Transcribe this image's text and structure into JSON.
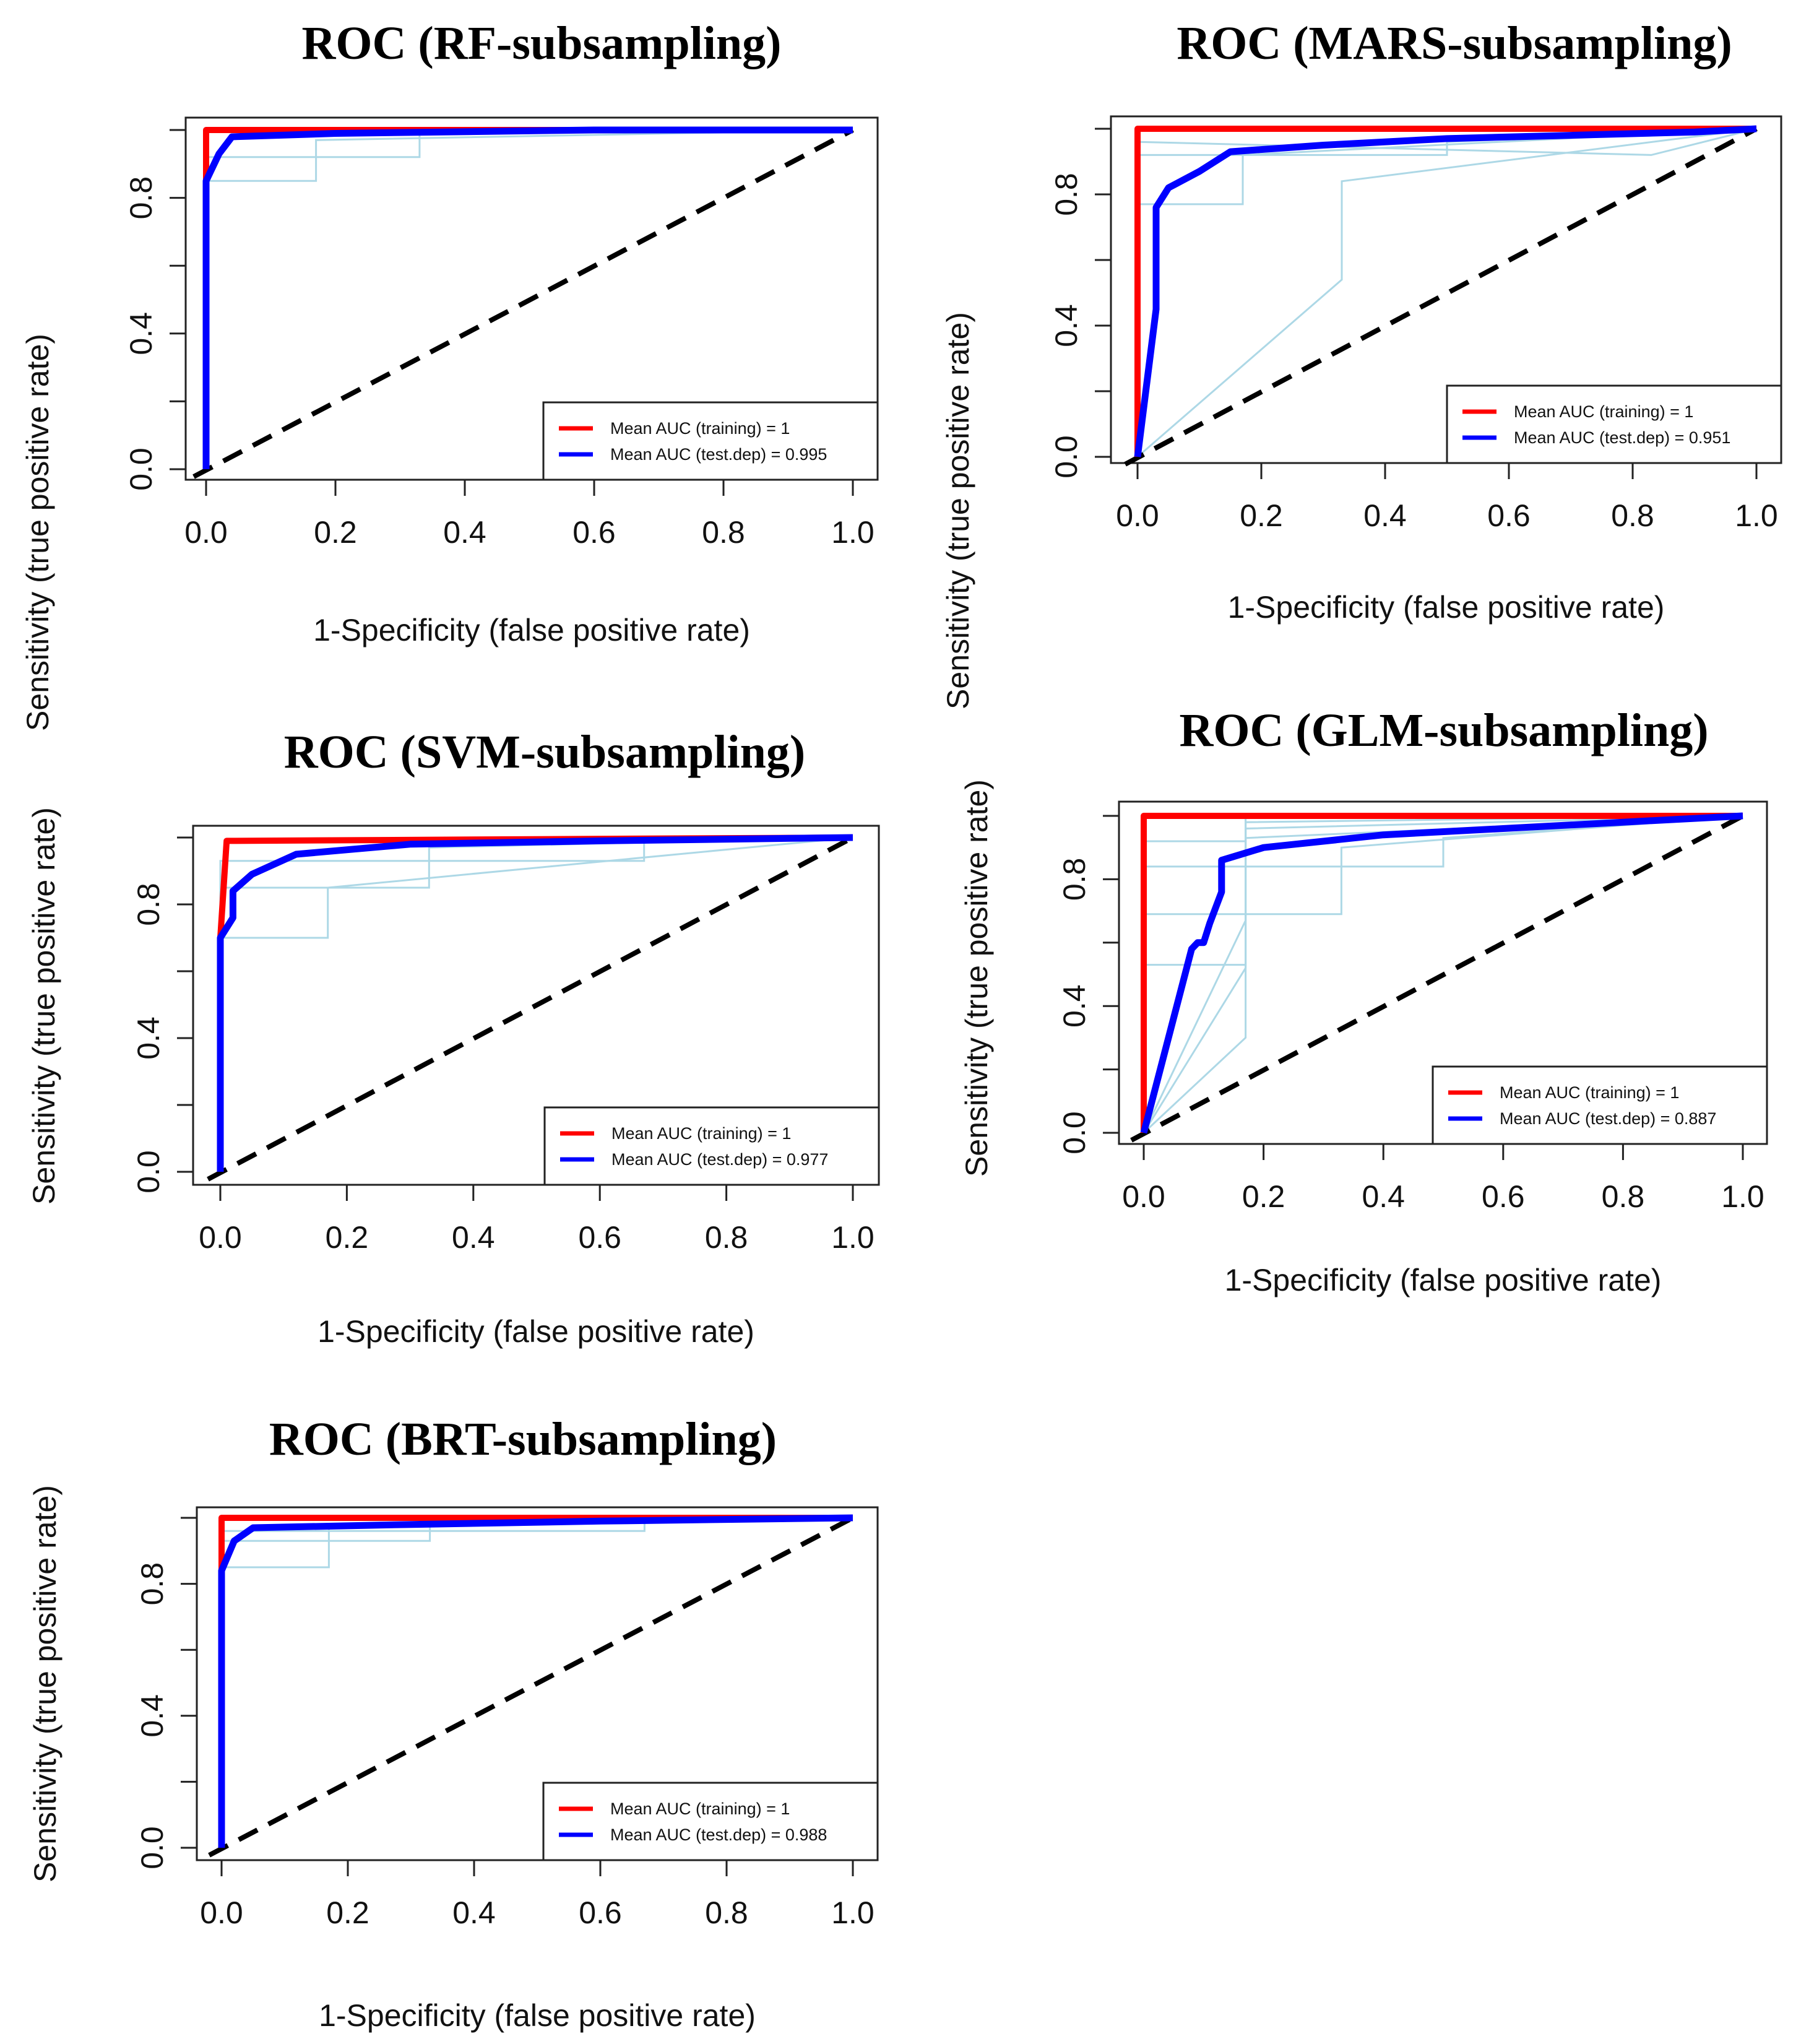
{
  "colors": {
    "training": "#ff0000",
    "test": "#0000ff",
    "reference": "#000000",
    "resample": "#add8e6",
    "frame": "#222222"
  },
  "chart_data": [
    {
      "type": "line",
      "title": "ROC (RF-subsampling)",
      "xlabel": "1-Specificity (false positive rate)",
      "ylabel": "Sensitivity (true positive rate)",
      "xlim": [
        0,
        1
      ],
      "ylim": [
        0,
        1
      ],
      "x_ticks": [
        "0.0",
        "0.2",
        "0.4",
        "0.6",
        "0.8",
        "1.0"
      ],
      "y_ticks": [
        "0.0",
        "0.4",
        "0.8"
      ],
      "legend_position": "bottom-right",
      "legend": [
        "Mean AUC (training) = 1",
        "Mean AUC (test.dep) = 0.995"
      ],
      "series": [
        {
          "name": "training",
          "x": [
            0,
            0,
            0,
            1
          ],
          "y": [
            0,
            0.85,
            1,
            1
          ]
        },
        {
          "name": "test",
          "x": [
            0,
            0,
            0.02,
            0.04,
            0.2,
            0.6,
            1
          ],
          "y": [
            0,
            0.85,
            0.93,
            0.98,
            0.99,
            1,
            1
          ]
        }
      ],
      "resamples": [
        {
          "x": [
            0,
            0,
            0.17,
            0.17,
            1
          ],
          "y": [
            0,
            0.85,
            0.85,
            0.97,
            1
          ]
        },
        {
          "x": [
            0,
            0,
            0.33,
            0.33,
            1
          ],
          "y": [
            0,
            0.92,
            0.92,
            1,
            1
          ]
        }
      ]
    },
    {
      "type": "line",
      "title": "ROC (MARS-subsampling)",
      "xlabel": "1-Specificity (false positive rate)",
      "ylabel": "Sensitivity (true positive rate)",
      "xlim": [
        0,
        1
      ],
      "ylim": [
        0,
        1
      ],
      "x_ticks": [
        "0.0",
        "0.2",
        "0.4",
        "0.6",
        "0.8",
        "1.0"
      ],
      "y_ticks": [
        "0.0",
        "0.4",
        "0.8"
      ],
      "legend_position": "bottom-right",
      "legend": [
        "Mean AUC (training) = 1",
        "Mean AUC (test.dep) = 0.951"
      ],
      "series": [
        {
          "name": "training",
          "x": [
            0,
            0,
            1
          ],
          "y": [
            0,
            1,
            1
          ]
        },
        {
          "name": "test",
          "x": [
            0,
            0.03,
            0.03,
            0.05,
            0.1,
            0.15,
            0.3,
            0.5,
            0.7,
            0.9,
            1
          ],
          "y": [
            0,
            0.45,
            0.76,
            0.82,
            0.87,
            0.93,
            0.95,
            0.97,
            0.98,
            0.99,
            1
          ]
        }
      ],
      "resamples": [
        {
          "x": [
            0,
            0.33,
            0.33,
            1
          ],
          "y": [
            0,
            0.54,
            0.84,
            1
          ]
        },
        {
          "x": [
            0,
            0,
            0.17,
            0.17,
            1
          ],
          "y": [
            0,
            0.77,
            0.77,
            0.92,
            1
          ]
        },
        {
          "x": [
            0,
            0,
            0.5,
            0.5,
            1
          ],
          "y": [
            0,
            0.92,
            0.92,
            0.96,
            1
          ]
        },
        {
          "x": [
            0,
            0,
            0.83,
            1
          ],
          "y": [
            0,
            0.96,
            0.92,
            1
          ]
        }
      ]
    },
    {
      "type": "line",
      "title": "ROC (SVM-subsampling)",
      "xlabel": "1-Specificity (false positive rate)",
      "ylabel": "Sensitivity (true positive rate)",
      "xlim": [
        0,
        1
      ],
      "ylim": [
        0,
        1
      ],
      "x_ticks": [
        "0.0",
        "0.2",
        "0.4",
        "0.6",
        "0.8",
        "1.0"
      ],
      "y_ticks": [
        "0.0",
        "0.4",
        "0.8"
      ],
      "legend_position": "bottom-right",
      "legend": [
        "Mean AUC (training) = 1",
        "Mean AUC (test.dep) = 0.977"
      ],
      "series": [
        {
          "name": "training",
          "x": [
            0,
            0,
            0.01,
            1
          ],
          "y": [
            0,
            0.7,
            0.99,
            1
          ]
        },
        {
          "name": "test",
          "x": [
            0,
            0,
            0.02,
            0.02,
            0.05,
            0.12,
            0.3,
            0.6,
            1
          ],
          "y": [
            0,
            0.7,
            0.76,
            0.84,
            0.89,
            0.95,
            0.98,
            0.99,
            1
          ]
        }
      ],
      "resamples": [
        {
          "x": [
            0,
            0,
            0.17,
            0.17,
            1
          ],
          "y": [
            0,
            0.7,
            0.7,
            0.85,
            1
          ]
        },
        {
          "x": [
            0,
            0,
            0.33,
            0.33,
            1
          ],
          "y": [
            0,
            0.85,
            0.85,
            0.97,
            1
          ]
        },
        {
          "x": [
            0,
            0,
            0.67,
            0.67,
            1
          ],
          "y": [
            0,
            0.93,
            0.93,
            1,
            1
          ]
        }
      ]
    },
    {
      "type": "line",
      "title": "ROC (GLM-subsampling)",
      "xlabel": "1-Specificity (false positive rate)",
      "ylabel": "Sensitivity (true positive rate)",
      "xlim": [
        0,
        1
      ],
      "ylim": [
        0,
        1
      ],
      "x_ticks": [
        "0.0",
        "0.2",
        "0.4",
        "0.6",
        "0.8",
        "1.0"
      ],
      "y_ticks": [
        "0.0",
        "0.4",
        "0.8"
      ],
      "legend_position": "bottom-right",
      "legend": [
        "Mean AUC (training) = 1",
        "Mean AUC (test.dep) = 0.887"
      ],
      "series": [
        {
          "name": "training",
          "x": [
            0,
            0,
            1
          ],
          "y": [
            0,
            1,
            1
          ]
        },
        {
          "name": "test",
          "x": [
            0,
            0.08,
            0.09,
            0.1,
            0.11,
            0.13,
            0.13,
            0.2,
            0.4,
            0.6,
            0.8,
            1
          ],
          "y": [
            0,
            0.58,
            0.6,
            0.6,
            0.66,
            0.76,
            0.86,
            0.9,
            0.94,
            0.96,
            0.98,
            1
          ]
        }
      ],
      "resamples": [
        {
          "x": [
            0,
            0.17,
            0.17,
            1
          ],
          "y": [
            0,
            0.3,
            1,
            1
          ]
        },
        {
          "x": [
            0,
            0.17,
            0.17,
            1
          ],
          "y": [
            0,
            0.52,
            0.98,
            1
          ]
        },
        {
          "x": [
            0,
            0.17,
            0.17,
            1
          ],
          "y": [
            0,
            0.67,
            0.96,
            1
          ]
        },
        {
          "x": [
            0,
            0,
            0.17,
            0.17,
            1
          ],
          "y": [
            0,
            0.53,
            0.53,
            0.93,
            1
          ]
        },
        {
          "x": [
            0,
            0,
            0.33,
            0.33,
            1
          ],
          "y": [
            0,
            0.69,
            0.69,
            0.9,
            1
          ]
        },
        {
          "x": [
            0,
            0,
            0.5,
            0.5,
            1
          ],
          "y": [
            0,
            0.84,
            0.84,
            0.93,
            1
          ]
        },
        {
          "x": [
            0,
            0,
            0.17,
            0.17,
            1
          ],
          "y": [
            0,
            0.92,
            0.92,
            1,
            1
          ]
        }
      ]
    },
    {
      "type": "line",
      "title": "ROC (BRT-subsampling)",
      "xlabel": "1-Specificity (false positive rate)",
      "ylabel": "Sensitivity (true positive rate)",
      "xlim": [
        0,
        1
      ],
      "ylim": [
        0,
        1
      ],
      "x_ticks": [
        "0.0",
        "0.2",
        "0.4",
        "0.6",
        "0.8",
        "1.0"
      ],
      "y_ticks": [
        "0.0",
        "0.4",
        "0.8"
      ],
      "legend_position": "bottom-right",
      "legend": [
        "Mean AUC (training) = 1",
        "Mean AUC (test.dep) = 0.988"
      ],
      "series": [
        {
          "name": "training",
          "x": [
            0,
            0,
            0,
            1
          ],
          "y": [
            0,
            0.85,
            1,
            1
          ]
        },
        {
          "name": "test",
          "x": [
            0,
            0,
            0.02,
            0.05,
            0.3,
            0.6,
            1
          ],
          "y": [
            0,
            0.84,
            0.93,
            0.97,
            0.98,
            0.99,
            1
          ]
        }
      ],
      "resamples": [
        {
          "x": [
            0,
            0,
            0.17,
            0.17,
            1
          ],
          "y": [
            0,
            0.85,
            0.85,
            0.97,
            1
          ]
        },
        {
          "x": [
            0,
            0,
            0.33,
            0.33,
            1
          ],
          "y": [
            0,
            0.93,
            0.93,
            1,
            1
          ]
        },
        {
          "x": [
            0,
            0,
            0.67,
            0.67,
            1
          ],
          "y": [
            0,
            0.96,
            0.96,
            1,
            1
          ]
        }
      ]
    }
  ]
}
